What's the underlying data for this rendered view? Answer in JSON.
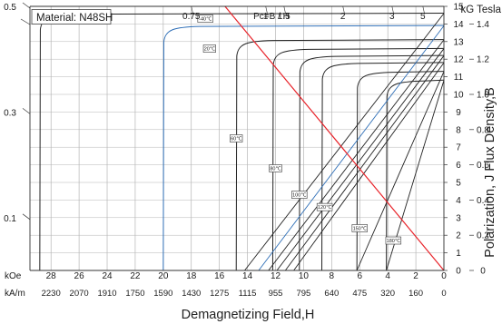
{
  "chart_data": {
    "type": "line",
    "material_label": "Material: N48SH",
    "x_axis": {
      "title": "Demagnetizing Field,H",
      "koe_unit_label": "kOe",
      "koe_ticks": [
        "28",
        "26",
        "24",
        "22",
        "20",
        "18",
        "16",
        "14",
        "12",
        "10",
        "8",
        "6",
        "4",
        "2",
        "0"
      ],
      "koe_values": [
        28,
        26,
        24,
        22,
        20,
        18,
        16,
        14,
        12,
        10,
        8,
        6,
        4,
        2,
        0
      ],
      "kam_unit_label": "kA/m",
      "kam_ticks": [
        "2230",
        "2070",
        "1910",
        "1750",
        "1590",
        "1430",
        "1275",
        "1115",
        "955",
        "795",
        "640",
        "475",
        "320",
        "160",
        "0"
      ],
      "range_koe": [
        29.5,
        0
      ]
    },
    "y_axis_left": {
      "ticks": [
        "0.5",
        "0.3",
        "0.1"
      ],
      "tick_values": [
        0.5,
        0.3,
        0.1
      ],
      "range": [
        0,
        0.5
      ]
    },
    "y_axis_right": {
      "title": "Polarization, J Flux Density,B",
      "units_label": "kG Tesla",
      "kg_ticks": [
        "15",
        "14",
        "13",
        "12",
        "11",
        "10",
        "9",
        "8",
        "7",
        "6",
        "5",
        "4",
        "3",
        "2",
        "1",
        "0"
      ],
      "kg_values": [
        15,
        14,
        13,
        12,
        11,
        10,
        9,
        8,
        7,
        6,
        5,
        4,
        3,
        2,
        1,
        0
      ],
      "tesla_ticks": [
        "1.4",
        "1.2",
        "1.0",
        "0.8",
        "0.6",
        "0.4",
        "0.2",
        "0"
      ],
      "tesla_values": [
        1.4,
        1.2,
        1.0,
        0.8,
        0.6,
        0.4,
        0.2,
        0
      ],
      "range_kg": [
        0,
        15
      ]
    },
    "pc_labels": {
      "values": [
        "0.75",
        "1",
        "1.5",
        "2",
        "3",
        "5"
      ],
      "marker": "Pc=B / H",
      "koe_positions": [
        18.0,
        12.7,
        11.4,
        7.2,
        3.7,
        1.5
      ]
    },
    "reference_line": {
      "name": "load line",
      "color": "#e8232a",
      "points": [
        [
          15.6,
          15
        ],
        [
          0,
          0
        ]
      ]
    },
    "temperatures": [
      {
        "label": "-40℃",
        "j_kg": 14.6,
        "hcj_koe": 28.8,
        "label_at": [
          17.0,
          14.3
        ],
        "color": "#222222"
      },
      {
        "label": "20℃",
        "j_kg": 13.9,
        "hcj_koe": 20.0,
        "label_at": [
          16.7,
          12.6
        ],
        "color": "#2f6fb7"
      },
      {
        "label": "60℃",
        "j_kg": 13.1,
        "hcj_koe": 14.8,
        "label_at": [
          14.8,
          7.5
        ],
        "color": "#222222"
      },
      {
        "label": "80℃",
        "j_kg": 12.6,
        "hcj_koe": 12.2,
        "label_at": [
          12.0,
          5.8
        ],
        "color": "#222222"
      },
      {
        "label": "100℃",
        "j_kg": 12.2,
        "hcj_koe": 10.3,
        "label_at": [
          10.3,
          4.3
        ],
        "color": "#222222"
      },
      {
        "label": "120℃",
        "j_kg": 11.8,
        "hcj_koe": 8.7,
        "label_at": [
          8.5,
          3.6
        ],
        "color": "#222222"
      },
      {
        "label": "150℃",
        "j_kg": 11.3,
        "hcj_koe": 6.2,
        "label_at": [
          6.0,
          2.4
        ],
        "color": "#222222"
      },
      {
        "label": "180℃",
        "j_kg": 10.8,
        "hcj_koe": 4.1,
        "label_at": [
          3.6,
          1.7
        ],
        "color": "#222222"
      }
    ],
    "b_lines": [
      {
        "br_kg": 14.6,
        "hc_koe": 14.2,
        "color": "#222222"
      },
      {
        "br_kg": 13.9,
        "hc_koe": 13.2,
        "color": "#2f6fb7"
      },
      {
        "br_kg": 13.1,
        "hc_koe": 12.5,
        "color": "#222222"
      },
      {
        "br_kg": 12.6,
        "hc_koe": 11.9,
        "color": "#222222"
      },
      {
        "br_kg": 12.2,
        "hc_koe": 11.3,
        "color": "#222222"
      },
      {
        "br_kg": 11.8,
        "hc_koe": 10.7,
        "color": "#222222"
      },
      {
        "br_kg": 11.3,
        "hc_koe": 6.2,
        "color": "#222222"
      },
      {
        "br_kg": 10.8,
        "hc_koe": 4.1,
        "color": "#222222"
      }
    ],
    "grid": true
  }
}
